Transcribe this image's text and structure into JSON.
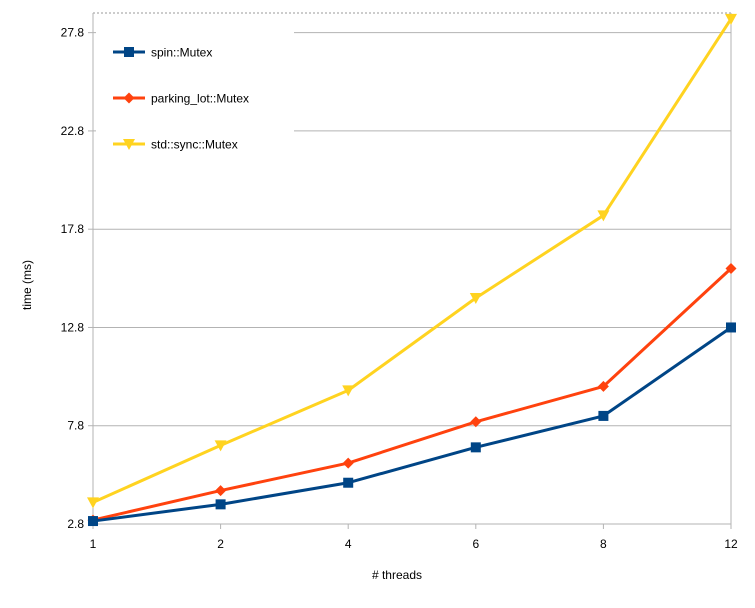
{
  "chart_data": {
    "type": "line",
    "x_categories": [
      "1",
      "2",
      "4",
      "6",
      "8",
      "12"
    ],
    "xlabel": "# threads",
    "ylabel": "time (ms)",
    "ylim": [
      2.8,
      28.8
    ],
    "yticks": [
      "2.8",
      "7.8",
      "12.8",
      "17.8",
      "22.8",
      "27.8"
    ],
    "ytick_values": [
      2.8,
      7.8,
      12.8,
      17.8,
      22.8,
      27.8
    ],
    "grid": true,
    "legend_position": "top-left",
    "series": [
      {
        "name": "spin::Mutex",
        "marker": "square",
        "color": "#004586",
        "values": [
          2.95,
          3.8,
          4.9,
          6.7,
          8.3,
          12.8
        ]
      },
      {
        "name": "parking_lot::Mutex",
        "marker": "diamond",
        "color": "#ff420e",
        "values": [
          3.0,
          4.5,
          5.9,
          8.0,
          9.8,
          15.8
        ]
      },
      {
        "name": "std::sync::Mutex",
        "marker": "triangle-down",
        "color": "#ffd320",
        "values": [
          3.9,
          6.8,
          9.6,
          14.3,
          18.5,
          28.5
        ]
      }
    ]
  }
}
